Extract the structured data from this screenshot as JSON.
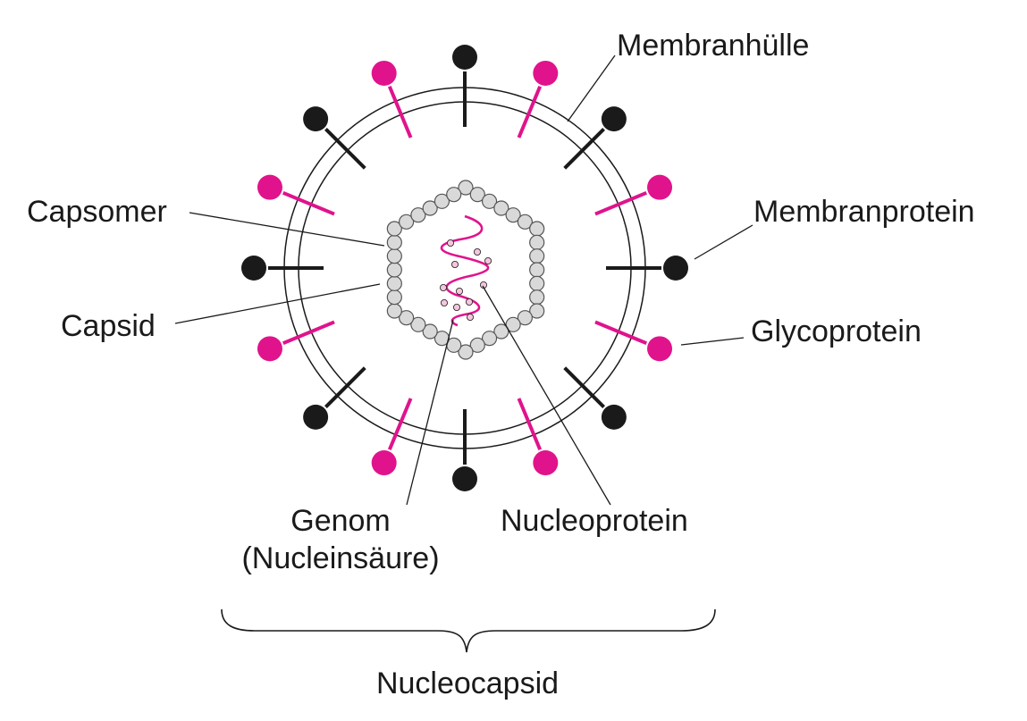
{
  "labels": {
    "membranhuelle": "Membranhülle",
    "membranprotein": "Membranprotein",
    "glycoprotein": "Glycoprotein",
    "capsomer": "Capsomer",
    "capsid": "Capsid",
    "genom_line1": "Genom",
    "genom_line2": "(Nucleinsäure)",
    "nucleoprotein": "Nucleoprotein",
    "nucleocapsid": "Nucleocapsid"
  },
  "colors": {
    "ink": "#1a1a1a",
    "magenta": "#e0138c",
    "capsomer_fill": "#d9d9d9",
    "capsomer_stroke": "#555555",
    "nucleoprotein_fill": "#f4c6dd"
  },
  "spikes": [
    {
      "kind": "membranprotein",
      "color": "black"
    },
    {
      "kind": "glycoprotein",
      "color": "magenta"
    },
    {
      "kind": "membranprotein",
      "color": "black"
    },
    {
      "kind": "glycoprotein",
      "color": "magenta"
    },
    {
      "kind": "membranprotein",
      "color": "black"
    },
    {
      "kind": "glycoprotein",
      "color": "magenta"
    },
    {
      "kind": "membranprotein",
      "color": "black"
    },
    {
      "kind": "glycoprotein",
      "color": "magenta"
    },
    {
      "kind": "membranprotein",
      "color": "black"
    },
    {
      "kind": "glycoprotein",
      "color": "magenta"
    },
    {
      "kind": "membranprotein",
      "color": "black"
    },
    {
      "kind": "glycoprotein",
      "color": "magenta"
    },
    {
      "kind": "membranprotein",
      "color": "black"
    },
    {
      "kind": "glycoprotein",
      "color": "magenta"
    },
    {
      "kind": "membranprotein",
      "color": "black"
    },
    {
      "kind": "glycoprotein",
      "color": "magenta"
    }
  ]
}
